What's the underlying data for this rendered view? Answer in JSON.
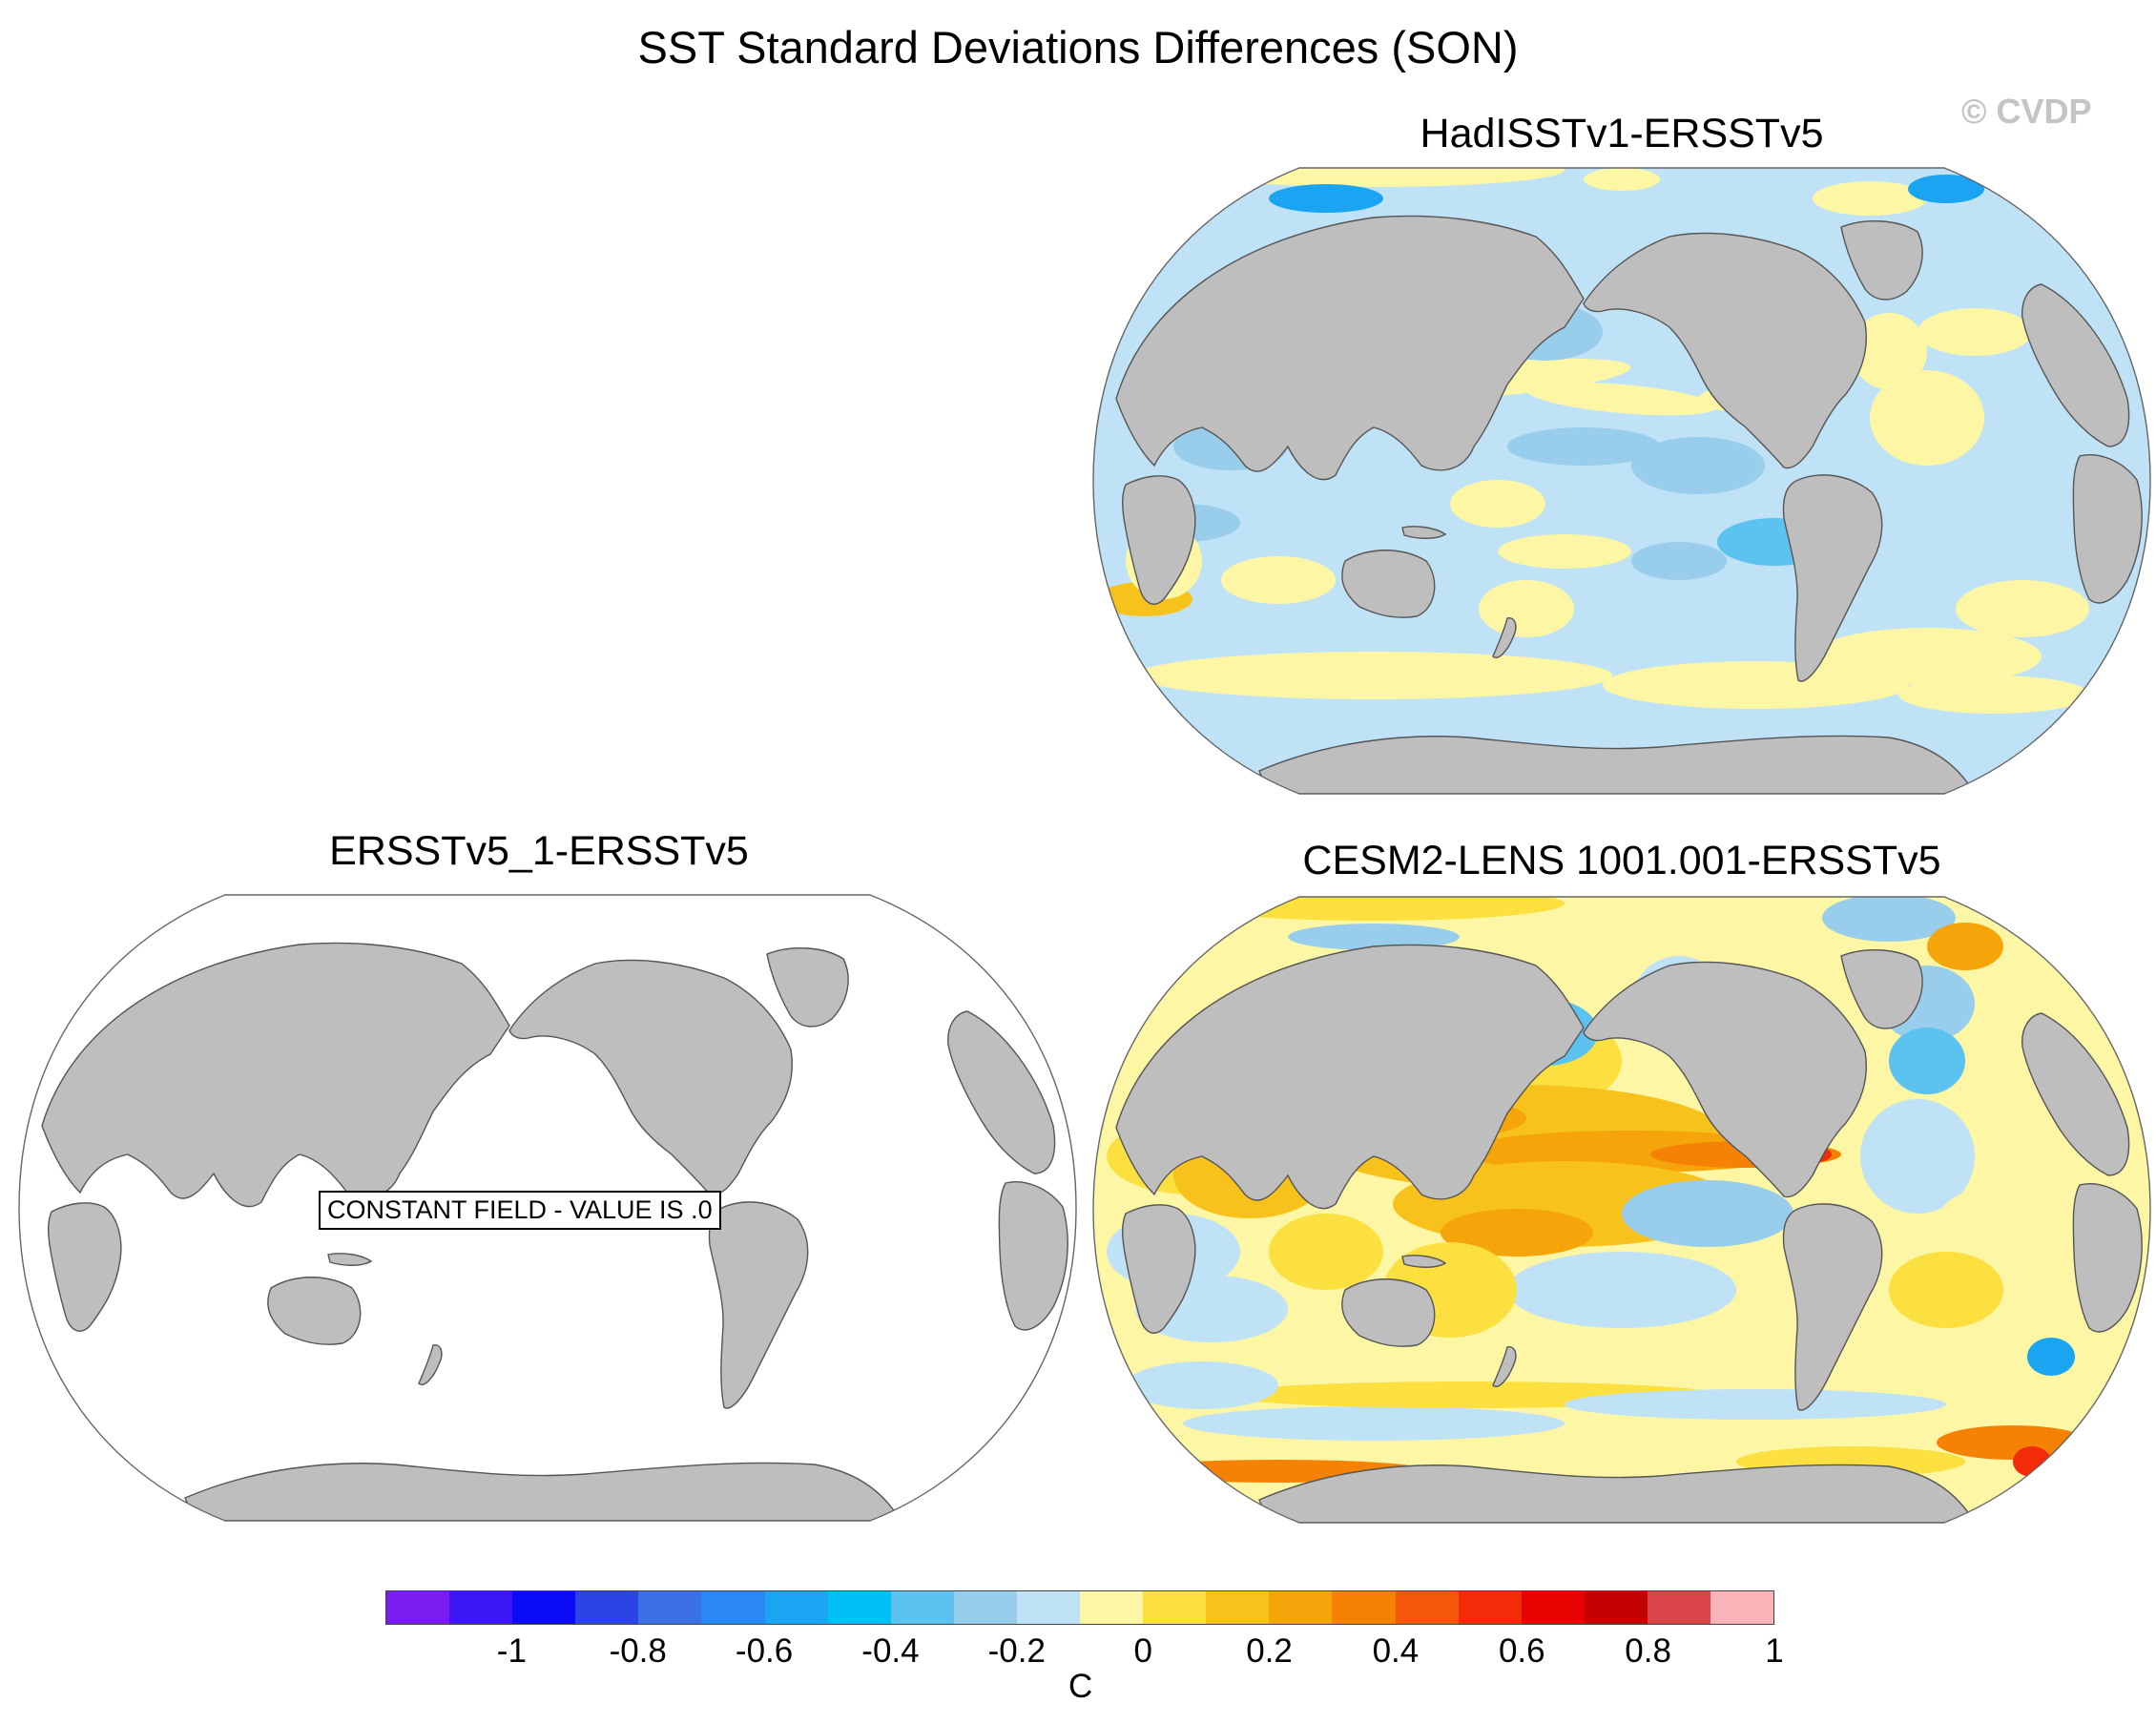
{
  "figure": {
    "title": "SST Standard Deviations Differences (SON)",
    "copyright": "© CVDP"
  },
  "panels": [
    {
      "title": "HadISSTv1-ERSSTv5",
      "field": "anomaly-mixed-negative"
    },
    {
      "title": "ERSSTv5_1-ERSSTv5",
      "field": "constant",
      "note": "CONSTANT FIELD - VALUE IS .0"
    },
    {
      "title": "CESM2-LENS 1001.001-ERSSTv5",
      "field": "anomaly-mixed-positive"
    }
  ],
  "colors": {
    "land": "#bebebe",
    "coastline": "#555555",
    "ocean_constant": "#ffffff"
  },
  "colorbar": {
    "unit": "C",
    "ticks": [
      "-1",
      "-0.8",
      "-0.6",
      "-0.4",
      "-0.2",
      "0",
      "0.2",
      "0.4",
      "0.6",
      "0.8",
      "1"
    ],
    "tick_values": [
      -1,
      -0.8,
      -0.6,
      -0.4,
      -0.2,
      0,
      0.2,
      0.4,
      0.6,
      0.8,
      1
    ],
    "range": [
      -1.2,
      1.1
    ],
    "bins": [
      "#7a1bf0",
      "#3c16f5",
      "#0a0af5",
      "#2c44e6",
      "#3b6fe6",
      "#2a88f5",
      "#1aa4f2",
      "#00c0f7",
      "#5cc2f0",
      "#98cdec",
      "#bfe2f6",
      "#fdf7a5",
      "#fbe040",
      "#f7c21c",
      "#f5a40a",
      "#f58204",
      "#f5580b",
      "#f22b08",
      "#e80303",
      "#c40202",
      "#d84448",
      "#fbb5b9"
    ]
  }
}
